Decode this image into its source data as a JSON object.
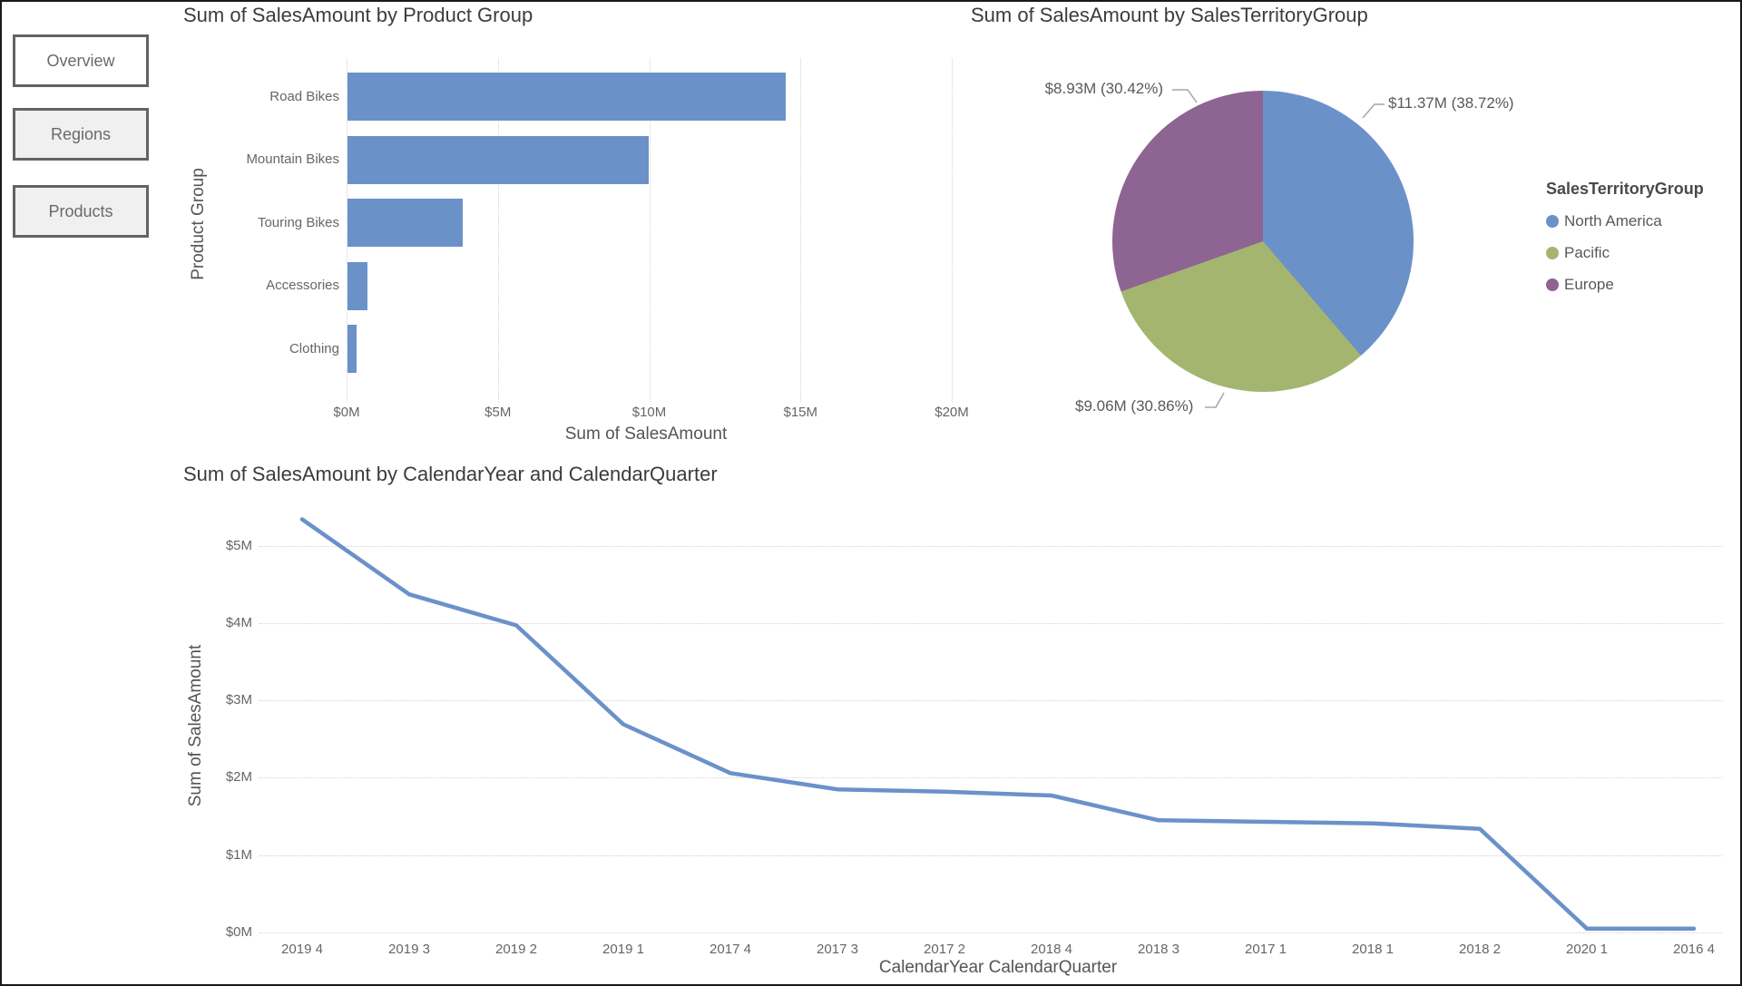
{
  "page": {
    "background": "#ffffff",
    "frame_color": "#191919"
  },
  "nav": {
    "buttons": [
      {
        "label": "Overview",
        "active": true
      },
      {
        "label": "Regions",
        "active": false
      },
      {
        "label": "Products",
        "active": false
      }
    ]
  },
  "colors": {
    "series_blue": "#6B91C9",
    "pie_green": "#A4B56F",
    "pie_purple": "#8E6493",
    "title_text": "#3c3c3c",
    "axis_text": "#666666",
    "gridline": "#d2d2d2"
  },
  "chart_data": [
    {
      "id": "bar",
      "type": "bar",
      "orientation": "horizontal",
      "title": "Sum of SalesAmount by Product Group",
      "xlabel": "Sum of SalesAmount",
      "ylabel": "Product Group",
      "categories": [
        "Road Bikes",
        "Mountain Bikes",
        "Touring Bikes",
        "Accessories",
        "Clothing"
      ],
      "values": [
        14.48,
        9.96,
        3.82,
        0.66,
        0.31
      ],
      "value_unit": "$M",
      "x_ticks": [
        "$0M",
        "$5M",
        "$10M",
        "$15M",
        "$20M"
      ],
      "x_tick_values": [
        0,
        5,
        10,
        15,
        20
      ],
      "xlim": [
        0,
        20.8
      ],
      "grid": "vertical-dotted",
      "bar_color": "#6B91C9"
    },
    {
      "id": "pie",
      "type": "pie",
      "title": "Sum of SalesAmount by SalesTerritoryGroup",
      "legend_title": "SalesTerritoryGroup",
      "legend_position": "right",
      "start_angle_deg": 0,
      "direction": "clockwise",
      "slices": [
        {
          "label": "North America",
          "value": 11.37,
          "pct": 38.72,
          "value_label": "$11.37M (38.72%)",
          "color": "#6B91C9"
        },
        {
          "label": "Pacific",
          "value": 9.06,
          "pct": 30.86,
          "value_label": "$9.06M (30.86%)",
          "color": "#A4B56F"
        },
        {
          "label": "Europe",
          "value": 8.93,
          "pct": 30.42,
          "value_label": "$8.93M (30.42%)",
          "color": "#8E6493"
        }
      ]
    },
    {
      "id": "line",
      "type": "line",
      "title": "Sum of SalesAmount by CalendarYear and CalendarQuarter",
      "xlabel": "CalendarYear CalendarQuarter",
      "ylabel": "Sum of SalesAmount",
      "categories": [
        "2019 4",
        "2019 3",
        "2019 2",
        "2019 1",
        "2017 4",
        "2017 3",
        "2017 2",
        "2018 4",
        "2018 3",
        "2017 1",
        "2018 1",
        "2018 2",
        "2020 1",
        "2016 4"
      ],
      "values": [
        5.34,
        4.37,
        3.97,
        2.69,
        2.06,
        1.85,
        1.82,
        1.77,
        1.45,
        1.43,
        1.41,
        1.34,
        0.05,
        0.05
      ],
      "value_unit": "$M",
      "y_ticks": [
        "$0M",
        "$1M",
        "$2M",
        "$3M",
        "$4M",
        "$5M"
      ],
      "y_tick_values": [
        0,
        1,
        2,
        3,
        4,
        5
      ],
      "ylim": [
        0,
        5.7
      ],
      "grid": "horizontal-dotted",
      "line_color": "#6B91C9"
    }
  ]
}
